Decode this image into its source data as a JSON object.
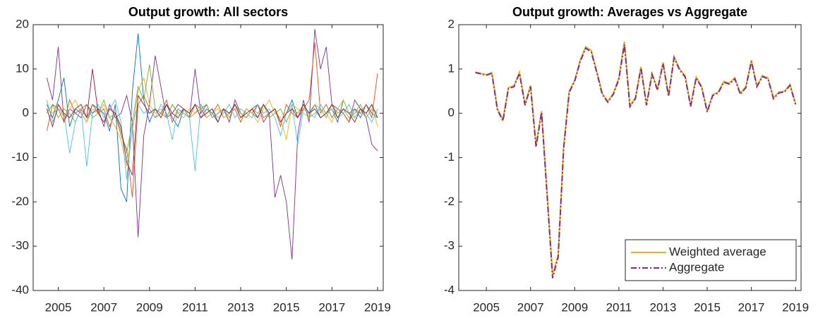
{
  "chart_data": [
    {
      "type": "line",
      "title": "Output growth: All sectors",
      "x": [
        2004.5,
        2004.75,
        2005,
        2005.25,
        2005.5,
        2005.75,
        2006,
        2006.25,
        2006.5,
        2006.75,
        2007,
        2007.25,
        2007.5,
        2007.75,
        2008,
        2008.25,
        2008.5,
        2008.75,
        2009,
        2009.25,
        2009.5,
        2009.75,
        2010,
        2010.25,
        2010.5,
        2010.75,
        2011,
        2011.25,
        2011.5,
        2011.75,
        2012,
        2012.25,
        2012.5,
        2012.75,
        2013,
        2013.25,
        2013.5,
        2013.75,
        2014,
        2014.25,
        2014.5,
        2014.75,
        2015,
        2015.25,
        2015.5,
        2015.75,
        2016,
        2016.25,
        2016.5,
        2016.75,
        2017,
        2017.25,
        2017.5,
        2017.75,
        2018,
        2018.25,
        2018.5,
        2018.75,
        2019
      ],
      "xlim": [
        2003.9,
        2019.25
      ],
      "xticks": [
        2005,
        2007,
        2009,
        2011,
        2013,
        2015,
        2017,
        2019
      ],
      "ylim": [
        -40,
        20
      ],
      "yticks": [
        -40,
        -30,
        -20,
        -10,
        0,
        10,
        20
      ],
      "series": [
        {
          "color": "#7E2F8E",
          "values": [
            8,
            3,
            15,
            -2,
            1,
            0,
            -1,
            2,
            0,
            1,
            -3,
            2,
            -1,
            0,
            4,
            -2,
            -28,
            -5,
            2,
            13,
            6,
            -1,
            0,
            2,
            1,
            -1,
            10,
            0,
            2,
            -1,
            0,
            1,
            -2,
            3,
            0,
            -1,
            1,
            2,
            -2,
            0,
            -19,
            -14,
            -20,
            -33,
            -5,
            3,
            -2,
            19,
            10,
            15,
            2,
            1,
            0,
            -2,
            3,
            1,
            -1,
            -7,
            -8.5
          ]
        },
        {
          "color": "#0072BD",
          "values": [
            2,
            -1,
            3,
            8,
            -3,
            1,
            0,
            -2,
            2,
            1,
            0,
            -4,
            2,
            -17,
            -20,
            5,
            18,
            3,
            -2,
            1,
            0,
            2,
            -1,
            -3,
            1,
            0,
            2,
            -1,
            1,
            0,
            -2,
            1,
            0,
            2,
            -1,
            1,
            0,
            -1,
            2,
            0,
            1,
            -2,
            0,
            3,
            -1,
            1,
            0,
            2,
            -1,
            0,
            1,
            -2,
            3,
            0,
            1,
            -1,
            2,
            0,
            -1
          ]
        },
        {
          "color": "#D95319",
          "values": [
            -4,
            2,
            1,
            -2,
            3,
            0,
            1,
            -1,
            2,
            0,
            1,
            -3,
            0,
            -5,
            -8,
            -19,
            2,
            4,
            1,
            -1,
            0,
            3,
            -2,
            1,
            0,
            -1,
            2,
            1,
            -1,
            0,
            2,
            -1,
            0,
            1,
            -2,
            1,
            0,
            2,
            -1,
            0,
            1,
            -3,
            2,
            0,
            -1,
            1,
            3,
            16,
            0,
            2,
            -1,
            1,
            0,
            -2,
            1,
            0,
            2,
            -1,
            9
          ]
        },
        {
          "color": "#EDB120",
          "values": [
            1,
            0,
            2,
            -1,
            1,
            3,
            0,
            -2,
            1,
            0,
            2,
            -1,
            -3,
            -6,
            -12,
            -4,
            5,
            8,
            2,
            0,
            1,
            -1,
            2,
            0,
            -1,
            1,
            0,
            2,
            -1,
            0,
            1,
            -1,
            0,
            2,
            -1,
            1,
            0,
            -2,
            1,
            3,
            0,
            -1,
            -6,
            2,
            1,
            0,
            -1,
            2,
            1,
            0,
            -2,
            1,
            3,
            0,
            -1,
            1,
            0,
            2,
            -3
          ]
        },
        {
          "color": "#77AC30",
          "values": [
            0,
            2,
            -1,
            1,
            0,
            -2,
            1,
            2,
            -1,
            0,
            3,
            -1,
            0,
            -4,
            -9,
            -2,
            6,
            3,
            11,
            1,
            0,
            -1,
            2,
            0,
            1,
            -1,
            0,
            1,
            2,
            -1,
            0,
            1,
            -1,
            2,
            0,
            -1,
            1,
            0,
            2,
            -1,
            0,
            1,
            -2,
            1,
            0,
            2,
            -1,
            0,
            1,
            -1,
            2,
            0,
            1,
            -1,
            0,
            2,
            -1,
            1,
            0
          ]
        },
        {
          "color": "#4DBEEE",
          "values": [
            3,
            -2,
            1,
            0,
            -9,
            -2,
            1,
            -12,
            0,
            2,
            -1,
            1,
            3,
            -2,
            -15,
            -3,
            2,
            0,
            1,
            -1,
            2,
            0,
            -6,
            1,
            0,
            -1,
            -13,
            2,
            0,
            1,
            -1,
            0,
            2,
            -1,
            1,
            0,
            -1,
            2,
            0,
            1,
            -1,
            -5,
            0,
            2,
            -7,
            1,
            0,
            -1,
            2,
            0,
            1,
            -1,
            0,
            2,
            -1,
            1,
            0,
            -2,
            1
          ]
        },
        {
          "color": "#A2142F",
          "values": [
            1,
            -3,
            2,
            0,
            -1,
            1,
            2,
            -1,
            10,
            0,
            -2,
            1,
            0,
            -3,
            -11,
            -14,
            4,
            2,
            0,
            1,
            -1,
            2,
            0,
            -1,
            1,
            0,
            2,
            -1,
            0,
            1,
            -2,
            1,
            0,
            2,
            -1,
            0,
            1,
            -1,
            2,
            0,
            1,
            -2,
            0,
            1,
            -1,
            2,
            0,
            1,
            -1,
            0,
            2,
            -1,
            1,
            0,
            -2,
            1,
            0,
            2,
            -1
          ]
        }
      ]
    },
    {
      "type": "line",
      "title": "Output growth: Averages vs Aggregate",
      "x": [
        2004.5,
        2004.75,
        2005,
        2005.25,
        2005.5,
        2005.75,
        2006,
        2006.25,
        2006.5,
        2006.75,
        2007,
        2007.25,
        2007.5,
        2007.75,
        2008,
        2008.25,
        2008.5,
        2008.75,
        2009,
        2009.25,
        2009.5,
        2009.75,
        2010,
        2010.25,
        2010.5,
        2010.75,
        2011,
        2011.25,
        2011.5,
        2011.75,
        2012,
        2012.25,
        2012.5,
        2012.75,
        2013,
        2013.25,
        2013.5,
        2013.75,
        2014,
        2014.25,
        2014.5,
        2014.75,
        2015,
        2015.25,
        2015.5,
        2015.75,
        2016,
        2016.25,
        2016.5,
        2016.75,
        2017,
        2017.25,
        2017.5,
        2017.75,
        2018,
        2018.25,
        2018.5,
        2018.75,
        2019
      ],
      "xlim": [
        2003.75,
        2019.25
      ],
      "xticks": [
        2005,
        2007,
        2009,
        2011,
        2013,
        2015,
        2017,
        2019
      ],
      "ylim": [
        -4,
        2
      ],
      "yticks": [
        -4,
        -3,
        -2,
        -1,
        0,
        1,
        2
      ],
      "legend": "southeast",
      "series": [
        {
          "name": "Weighted average",
          "color": "#EDB120",
          "dash": "solid",
          "values": [
            0.93,
            0.9,
            0.87,
            0.92,
            0.1,
            -0.15,
            0.58,
            0.62,
            0.93,
            0.2,
            0.63,
            -0.73,
            0.05,
            -1.8,
            -3.65,
            -3.2,
            -0.75,
            0.5,
            0.75,
            1.2,
            1.5,
            1.42,
            0.95,
            0.45,
            0.27,
            0.45,
            0.8,
            1.62,
            0.17,
            0.35,
            1.05,
            0.2,
            0.9,
            0.55,
            1.15,
            0.4,
            1.28,
            1.0,
            0.85,
            0.17,
            0.82,
            0.6,
            0.05,
            0.42,
            0.48,
            0.72,
            0.68,
            0.8,
            0.45,
            0.6,
            1.2,
            0.62,
            0.85,
            0.8,
            0.35,
            0.48,
            0.5,
            0.65,
            0.22
          ]
        },
        {
          "name": "Aggregate",
          "color": "#7E2F8E",
          "dash": "dashdot",
          "values": [
            0.92,
            0.89,
            0.86,
            0.9,
            0.08,
            -0.17,
            0.56,
            0.6,
            0.9,
            0.18,
            0.6,
            -0.76,
            0.02,
            -1.85,
            -3.72,
            -3.25,
            -0.8,
            0.47,
            0.72,
            1.17,
            1.47,
            1.38,
            0.92,
            0.42,
            0.25,
            0.43,
            0.77,
            1.55,
            0.15,
            0.33,
            1.02,
            0.18,
            0.88,
            0.52,
            1.12,
            0.38,
            1.25,
            0.98,
            0.82,
            0.15,
            0.8,
            0.58,
            0.03,
            0.4,
            0.46,
            0.7,
            0.66,
            0.78,
            0.43,
            0.58,
            1.17,
            0.6,
            0.83,
            0.78,
            0.33,
            0.46,
            0.48,
            0.63,
            0.2
          ]
        }
      ]
    }
  ]
}
